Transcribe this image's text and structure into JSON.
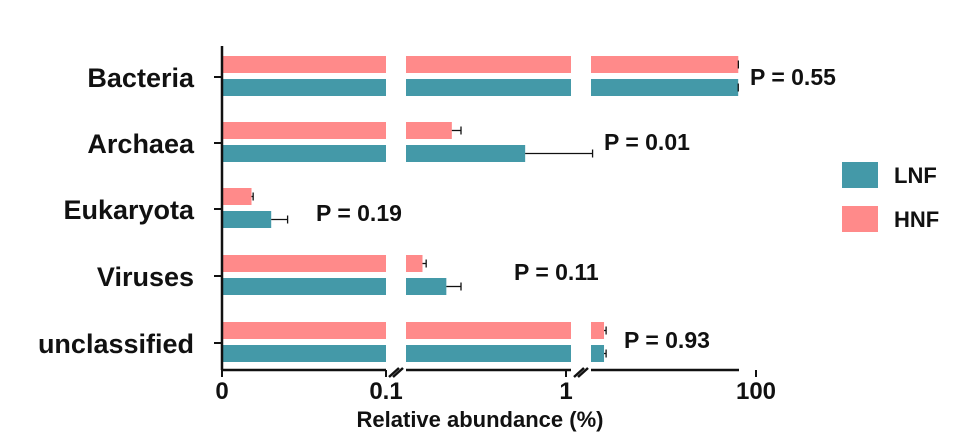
{
  "chart_data": {
    "type": "bar",
    "orientation": "horizontal",
    "xlabel": "Relative abundance (%)",
    "axis_breaks": true,
    "x_tick_labels": [
      "0",
      "0.1",
      "1",
      "100"
    ],
    "categories": [
      "Bacteria",
      "Archaea",
      "Eukaryota",
      "Viruses",
      "unclassified"
    ],
    "series": [
      {
        "name": "HNF",
        "color": "#FF8A8A",
        "values": [
          97.8,
          0.35,
          0.018,
          0.19,
          1.5
        ],
        "error": [
          0.2,
          0.05,
          0.001,
          0.02,
          0.1
        ]
      },
      {
        "name": "LNF",
        "color": "#4499A8",
        "values": [
          97.5,
          0.75,
          0.03,
          0.32,
          1.5
        ],
        "error": [
          0.2,
          0.3,
          0.01,
          0.08,
          0.1
        ]
      }
    ],
    "p_values": [
      "P = 0.55",
      "P = 0.01",
      "P = 0.19",
      "P = 0.11",
      "P = 0.93"
    ],
    "legend": {
      "placement": "right",
      "entries": [
        "LNF",
        "HNF"
      ]
    }
  }
}
